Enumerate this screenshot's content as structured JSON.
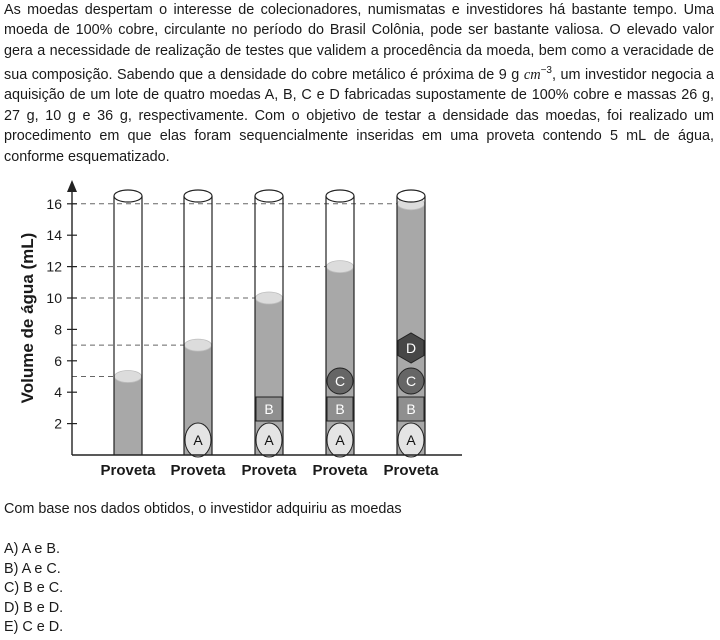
{
  "statement": {
    "text_before_unit": "As moedas despertam o interesse de colecionadores, numismatas e investidores há bastante tempo. Uma moeda de 100% cobre, circulante no período do Brasil Colônia, pode ser bastante valiosa. O elevado valor gera a necessidade de realização de testes que validem a procedência da moeda, bem como a veracidade de sua composição. Sabendo que a densidade do cobre metálico é próxima de 9 g ",
    "unit_base": "cm",
    "unit_exp": "−3",
    "text_after_unit": ", um investidor negocia a aquisição de um lote de quatro moedas A, B, C e D fabricadas supostamente de 100% cobre e massas 26 g, 27 g, 10 g e 36 g, respectivamente. Com o objetivo de testar a densidade das moedas, foi realizado um procedimento em que elas foram sequencialmente inseridas em uma proveta contendo 5 mL de água, conforme esquematizado."
  },
  "figure": {
    "y_axis_label": "Volume de água (mL)",
    "y_ticks": [
      2,
      4,
      6,
      8,
      10,
      12,
      14,
      16
    ],
    "cylinder_label": "Proveta",
    "cylinders": [
      {
        "water_level": 5,
        "coins": []
      },
      {
        "water_level": 7,
        "coins": [
          "A"
        ]
      },
      {
        "water_level": 10,
        "coins": [
          "A",
          "B"
        ]
      },
      {
        "water_level": 12,
        "coins": [
          "A",
          "B",
          "C"
        ]
      },
      {
        "water_level": 16,
        "coins": [
          "A",
          "B",
          "C",
          "D"
        ]
      }
    ],
    "coin_shapes": {
      "A": "ellipse",
      "B": "square",
      "C": "circle",
      "D": "hexagon"
    },
    "colors": {
      "water": "#a8a8a8",
      "coin_A": "#e4e4e4",
      "coin_B": "#8f8f8f",
      "coin_C": "#666666",
      "coin_D": "#474747",
      "dashed": "#666666"
    }
  },
  "question": "Com base nos dados obtidos, o investidor adquiriu as moedas",
  "options": [
    "A) A e B.",
    "B) A e C.",
    "C) B e C.",
    "D) B e D.",
    "E) C e D."
  ]
}
